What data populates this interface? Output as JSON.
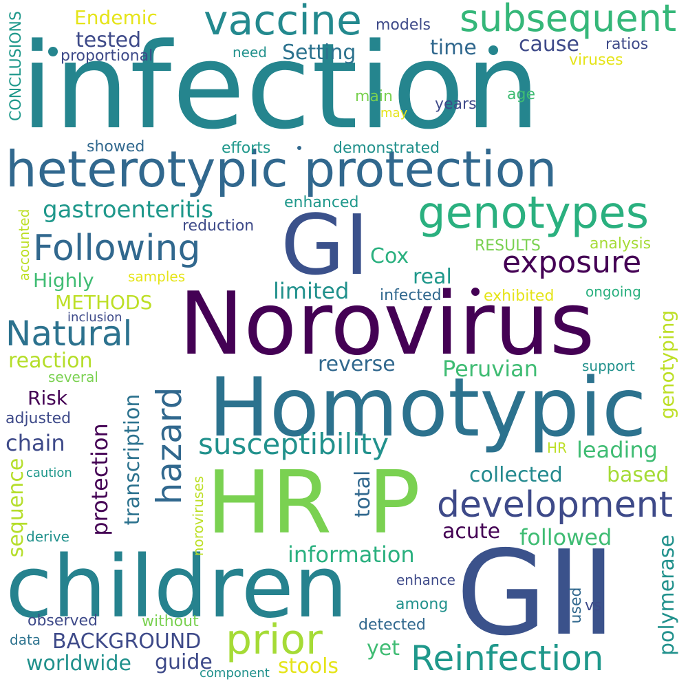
{
  "palette": {
    "dark_purple": "#440154",
    "indigo": "#3b518b",
    "slate_blue": "#31688e",
    "teal": "#21918c",
    "sea_green": "#2a9d82",
    "green": "#3fbc73",
    "light_green": "#7ad151",
    "yellow_green": "#bddf26",
    "yellow": "#e5e419"
  },
  "words": {
    "infection": "infection",
    "norovirus": "Norovirus",
    "homotypic": "Homotypic",
    "gii": "GII",
    "children": "children",
    "hr": "HR",
    "p": "P",
    "heterotypic_protection": "heterotypic protection",
    "gi": "GI",
    "genotypes": "genotypes",
    "vaccine": "vaccine",
    "subsequent": "subsequent",
    "endemic": "Endemic",
    "tested": "tested",
    "models": "models",
    "proportional": "proportional",
    "need": "need",
    "setting": "Setting",
    "time": "time",
    "cause": "cause",
    "ratios": "ratios",
    "viruses": "viruses",
    "main": "main",
    "may": "may",
    "age": "age",
    "years": "years",
    "showed": "showed",
    "efforts": "efforts",
    "demonstrated": "demonstrated",
    "conclusions": "CONCLUSIONS",
    "gastroenteritis": "gastroenteritis",
    "enhanced": "enhanced",
    "reduction": "reduction",
    "accounted": "accounted",
    "following": "Following",
    "exposure": "exposure",
    "results": "RESULTS",
    "analysis": "analysis",
    "cox": "Cox",
    "highly": "Highly",
    "samples": "samples",
    "real": "real",
    "methods": "METHODS",
    "limited": "limited",
    "infected": "infected",
    "exhibited": "exhibited",
    "ongoing": "ongoing",
    "inclusion": "inclusion",
    "natural": "Natural",
    "genotyping": "genotyping",
    "reaction": "reaction",
    "reverse": "reverse",
    "peruvian": "Peruvian",
    "support": "support",
    "several": "several",
    "hazard": "hazard",
    "risk": "Risk",
    "transcription": "transcription",
    "adjusted": "adjusted",
    "protection": "protection",
    "chain": "chain",
    "susceptibility": "susceptibility",
    "leading": "leading",
    "caution": "caution",
    "noroviruses": "noroviruses",
    "total": "total",
    "collected": "collected",
    "based": "based",
    "development": "development",
    "sequence": "sequence",
    "acute": "acute",
    "followed": "followed",
    "derive": "derive",
    "information": "information",
    "polymerase": "polymerase",
    "enhance": "enhance",
    "among": "among",
    "used": "used",
    "vs": "vs",
    "observed": "observed",
    "without": "without",
    "detected": "detected",
    "prior": "prior",
    "data": "data",
    "background": "BACKGROUND",
    "reinfection": "Reinfection",
    "yet": "yet",
    "worldwide": "worldwide",
    "guide": "guide",
    "stools": "stools",
    "component": "component"
  }
}
